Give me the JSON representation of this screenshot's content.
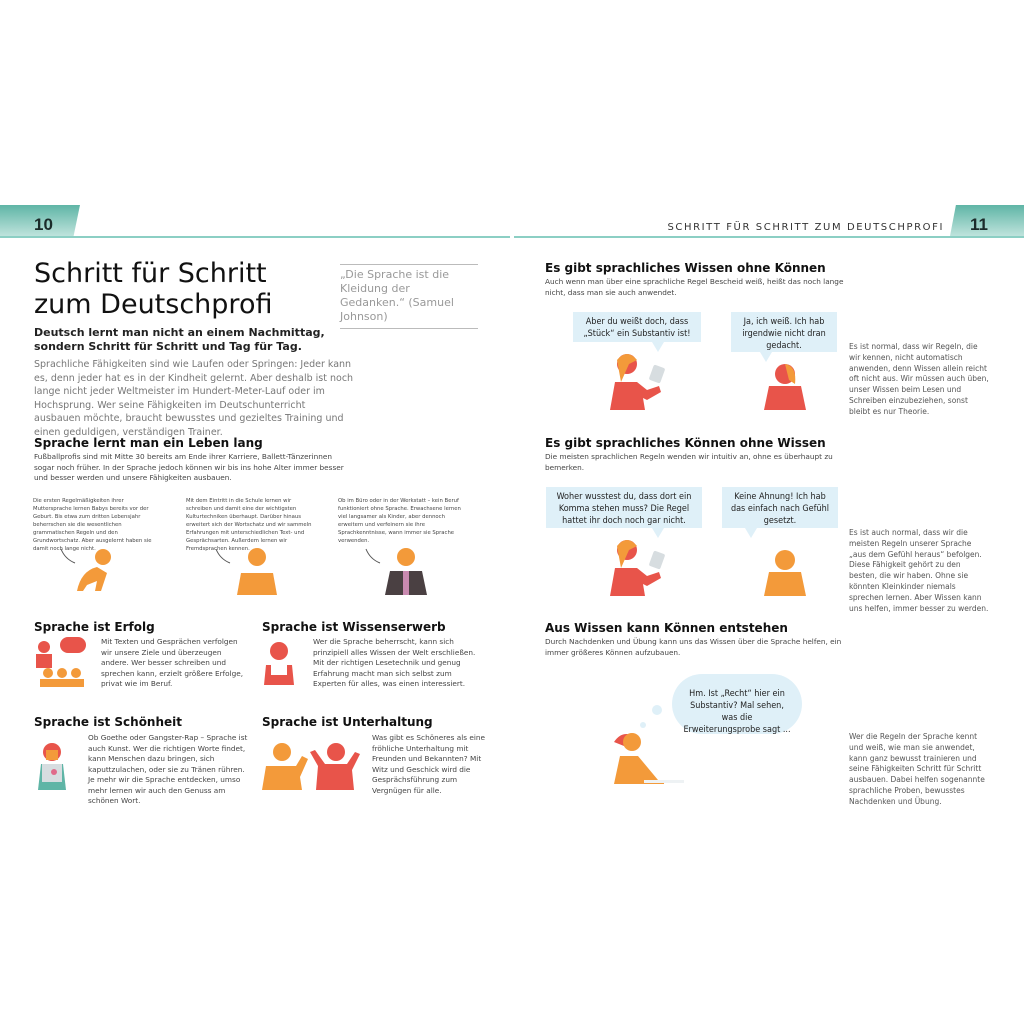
{
  "header": {
    "left_page_number": "10",
    "right_page_number": "11",
    "running_title": "SCHRITT FÜR SCHRITT ZUM DEUTSCHPROFI"
  },
  "left": {
    "title_line1": "Schritt für Schritt",
    "title_line2": "zum Deutschprofi",
    "quote": "„Die Sprache ist die Kleidung der Gedanken.“ (Samuel Johnson)",
    "lead": "Deutsch lernt man nicht an einem Nachmittag, sondern Schritt für Schritt und Tag für Tag.",
    "intro": "Sprachliche Fähigkeiten sind wie Laufen oder Springen: Jeder kann es, denn jeder hat es in der Kindheit gelernt. Aber deshalb ist noch lange nicht jeder Weltmeister im Hundert-Meter-Lauf oder im Hochsprung. Wer seine Fähigkeiten im Deutschunterricht ausbauen möchte, braucht bewusstes und gezieltes Training und einen geduldigen, verständigen Trainer.",
    "lifelong": {
      "heading": "Sprache lernt man ein Leben lang",
      "text": "Fußballprofis sind mit Mitte 30 bereits am Ende ihrer Karriere, Ballett-Tänzerinnen sogar noch früher. In der Sprache jedoch können wir bis ins hohe Alter immer besser und besser werden und unsere Fähigkeiten ausbauen.",
      "stages": [
        {
          "text": "Die ersten Regelmäßigkeiten ihrer Muttersprache lernen Babys bereits vor der Geburt. Bis etwa zum dritten Lebensjahr beherrschen sie die wesentlichen grammatischen Regeln und den Grundwortschatz. Aber ausgelernt haben sie damit noch lange nicht.",
          "icon": "baby-icon"
        },
        {
          "text": "Mit dem Eintritt in die Schule lernen wir schreiben und damit eine der wichtigsten Kulturtechniken überhaupt. Darüber hinaus erweitert sich der Wortschatz und wir sammeln Erfahrungen mit unterschiedlichen Text- und Gesprächsarten. Außerdem lernen wir Fremdsprachen kennen.",
          "icon": "child-icon"
        },
        {
          "text": "Ob im Büro oder in der Werkstatt – kein Beruf funktioniert ohne Sprache. Erwachsene lernen viel langsamer als Kinder, aber dennoch erweitern und verfeinern sie ihre Sprachkenntnisse, wann immer sie Sprache verwenden.",
          "icon": "adult-icon"
        }
      ]
    },
    "sections": [
      {
        "heading": "Sprache ist Erfolg",
        "text": "Mit Texten und Gesprächen verfolgen wir unsere Ziele und überzeugen andere. Wer besser schreiben und sprechen kann, erzielt größere Erfolge, privat wie im Beruf.",
        "icon": "speaker-audience-icon"
      },
      {
        "heading": "Sprache ist Wissenserwerb",
        "text": "Wer die Sprache beherrscht, kann sich prinzipiell alles Wissen der Welt erschließen. Mit der richtigen Lesetechnik und genug Erfahrung macht man sich selbst zum Experten für alles, was einen interessiert.",
        "icon": "reader-icon"
      },
      {
        "heading": "Sprache ist Schönheit",
        "text": "Ob Goethe oder Gangster-Rap – Sprache ist auch Kunst. Wer die richtigen Worte findet, kann Menschen dazu bringen, sich kaputtzulachen, oder sie zu Tränen rühren. Je mehr wir die Sprache entdecken, umso mehr lernen wir auch den Genuss am schönen Wort.",
        "icon": "girl-reading-icon"
      },
      {
        "heading": "Sprache ist Unterhaltung",
        "text": "Was gibt es Schöneres als eine fröhliche Unterhaltung mit Freunden und Bekannten? Mit Witz und Geschick wird die Gesprächsführung zum Vergnügen für alle.",
        "icon": "conversation-icon"
      }
    ]
  },
  "right": {
    "blocks": [
      {
        "heading": "Es gibt sprachliches Wissen ohne Können",
        "sub": "Auch wenn man über eine sprachliche Regel Bescheid weiß, heißt das noch lange nicht, dass man sie auch anwendet.",
        "bubble1": "Aber du weißt doch, dass „Stück“ ein Substantiv ist!",
        "bubble2": "Ja, ich weiß. Ich hab irgendwie nicht dran gedacht.",
        "side": "Es ist normal, dass wir Regeln, die wir kennen, nicht automatisch anwenden, denn Wissen allein reicht oft nicht aus. Wir müssen auch üben, unser Wissen beim Lesen und Schreiben einzubeziehen, sonst bleibt es nur Theorie."
      },
      {
        "heading": "Es gibt sprachliches Können ohne Wissen",
        "sub": "Die meisten sprachlichen Regeln wenden wir intuitiv an, ohne es überhaupt zu bemerken.",
        "bubble1": "Woher wusstest du, dass dort ein Komma stehen muss? Die Regel hattet ihr doch noch gar nicht.",
        "bubble2": "Keine Ahnung! Ich hab das einfach nach Gefühl gesetzt.",
        "side": "Es ist auch normal, dass wir die meisten Regeln unserer Sprache „aus dem Gefühl heraus“ befolgen. Diese Fähigkeit gehört zu den besten, die wir haben. Ohne sie könnten Kleinkinder niemals sprechen lernen. Aber Wissen kann uns helfen, immer besser zu werden."
      },
      {
        "heading": "Aus Wissen kann Können entstehen",
        "sub": "Durch Nachdenken und Übung kann uns das Wissen über die Sprache helfen, ein immer größeres Können aufzubauen.",
        "thought": "Hm. Ist „Recht“ hier ein Substantiv? Mal sehen, was die Erweiterungsprobe sagt ...",
        "side": "Wer die Regeln der Sprache kennt und weiß, wie man sie anwendet, kann ganz bewusst trainieren und seine Fähigkeiten Schritt für Schritt ausbauen. Dabei helfen sogenannte sprachliche Proben, bewusstes Nachdenken und Übung."
      }
    ]
  },
  "colors": {
    "teal": "#5fb5a6",
    "orange": "#f39a3a",
    "red": "#e8544a",
    "bubble": "#dff0f8"
  }
}
